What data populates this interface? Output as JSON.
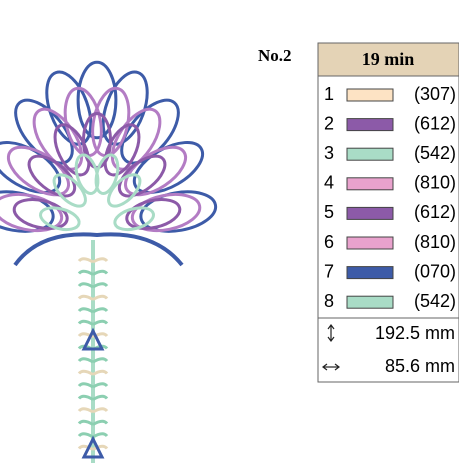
{
  "label": "No.2",
  "time": "19 min",
  "threads": [
    {
      "number": 1,
      "color": "#fde3c4",
      "code": "(307)"
    },
    {
      "number": 2,
      "color": "#8c5aa8",
      "code": "(612)"
    },
    {
      "number": 3,
      "color": "#a9dcc6",
      "code": "(542)"
    },
    {
      "number": 4,
      "color": "#e9a2cd",
      "code": "(810)"
    },
    {
      "number": 5,
      "color": "#8c5aa8",
      "code": "(612)"
    },
    {
      "number": 6,
      "color": "#e9a2cd",
      "code": "(810)"
    },
    {
      "number": 7,
      "color": "#3d5ba8",
      "code": "(070)"
    },
    {
      "number": 8,
      "color": "#a9dcc6",
      "code": "(542)"
    }
  ],
  "height": "192.5 mm",
  "width": "85.6 mm"
}
